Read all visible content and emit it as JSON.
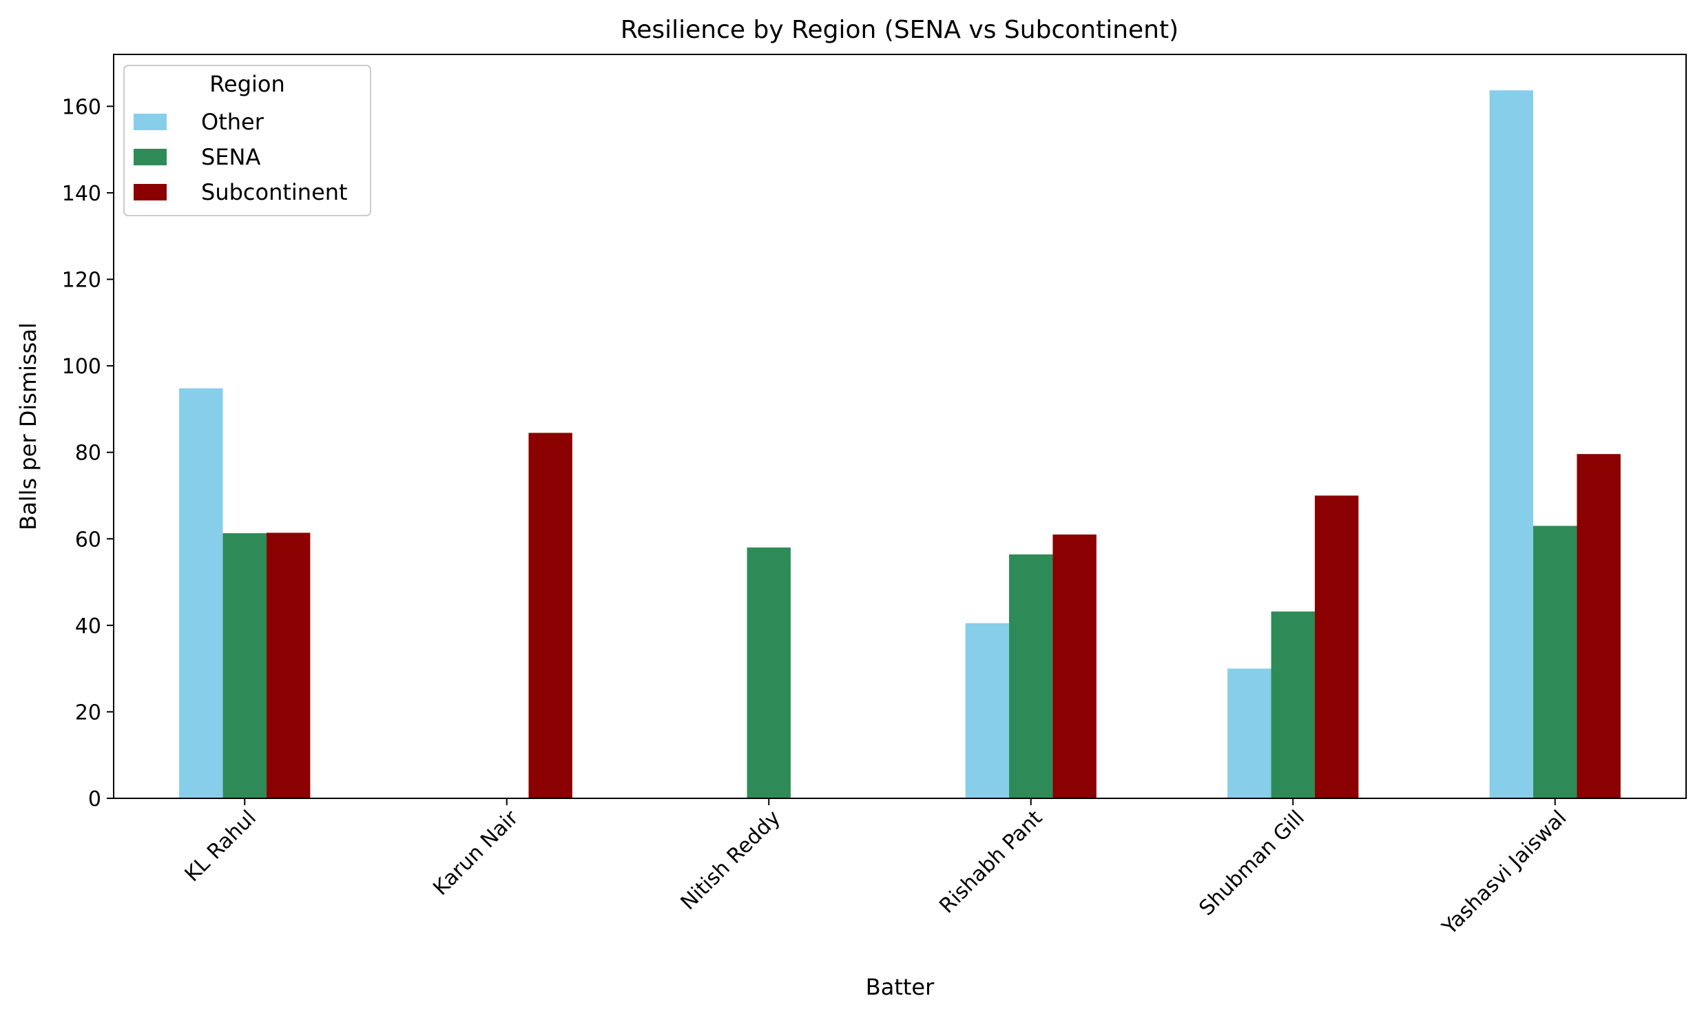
{
  "chart_data": {
    "type": "bar",
    "title": "Resilience by Region (SENA vs Subcontinent)",
    "xlabel": "Batter",
    "ylabel": "Balls per Dismissal",
    "categories": [
      "KL Rahul",
      "Karun Nair",
      "Nitish Reddy",
      "Rishabh Pant",
      "Shubman Gill",
      "Yashasvi Jaiswal"
    ],
    "series": [
      {
        "name": "Other",
        "color": "#87ceeb",
        "values": [
          94.8,
          null,
          null,
          40.5,
          30.0,
          163.7
        ]
      },
      {
        "name": "SENA",
        "color": "#2e8b57",
        "values": [
          61.3,
          null,
          58.0,
          56.4,
          43.2,
          63.0
        ]
      },
      {
        "name": "Subcontinent",
        "color": "#8b0000",
        "values": [
          61.4,
          84.5,
          null,
          61.0,
          70.0,
          79.6
        ]
      }
    ],
    "ylim": [
      0,
      172
    ],
    "yticks": [
      0,
      20,
      40,
      60,
      80,
      100,
      120,
      140,
      160
    ],
    "legend": {
      "title": "Region",
      "placement": "top-left"
    },
    "grid": false
  }
}
